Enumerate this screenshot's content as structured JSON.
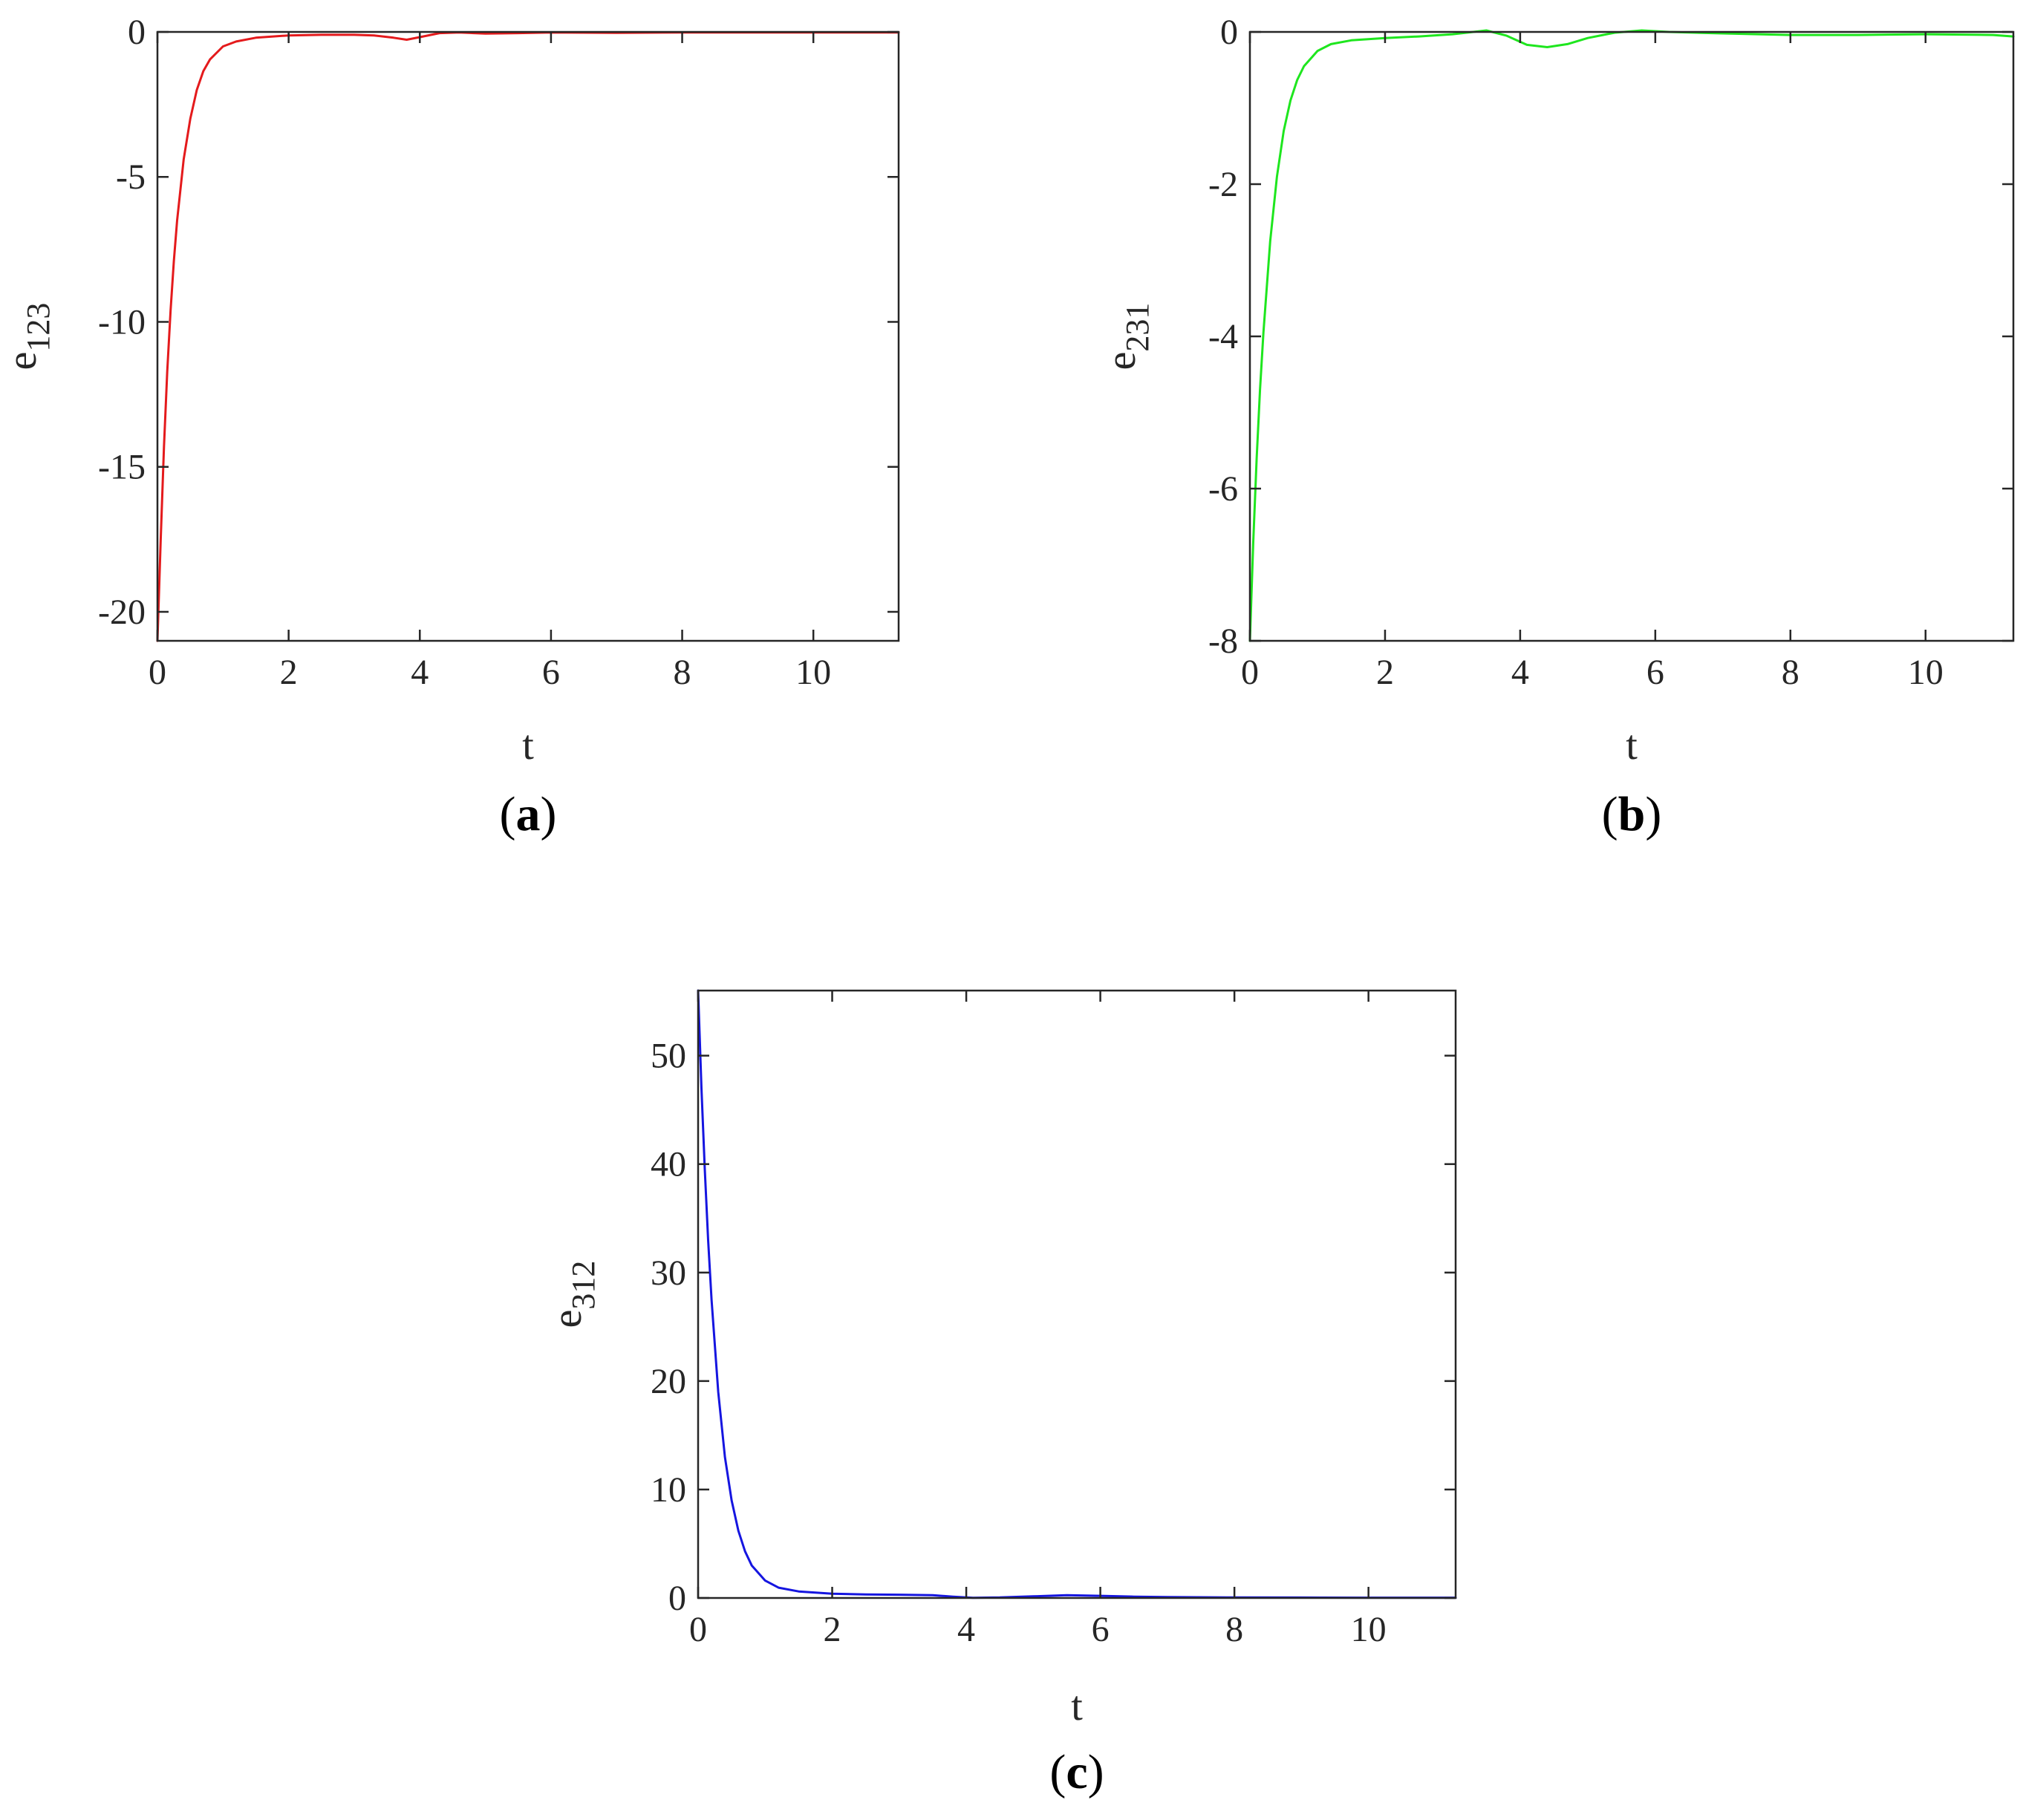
{
  "chart_data": [
    {
      "id": "a",
      "type": "line",
      "panel_label": {
        "open": "(",
        "letter": "a",
        "close": ")"
      },
      "xlabel": "t",
      "ylabel": {
        "base": "e",
        "sub": "123"
      },
      "xlim": [
        0,
        11.3
      ],
      "ylim": [
        -21,
        0
      ],
      "xticks": [
        0,
        2,
        4,
        6,
        8,
        10
      ],
      "yticks": [
        -20,
        -15,
        -10,
        -5,
        0
      ],
      "grid": false,
      "color": "#e41a1c",
      "series": [
        {
          "x": [
            0,
            0.05,
            0.1,
            0.15,
            0.2,
            0.25,
            0.3,
            0.4,
            0.5,
            0.6,
            0.7,
            0.8,
            1.0,
            1.2,
            1.5,
            2.0,
            2.5,
            3.0,
            3.3,
            3.6,
            3.8,
            4.0,
            4.3,
            4.6,
            5.0,
            5.5,
            6.0,
            7.0,
            8.0,
            9.0,
            10.0,
            11.3
          ],
          "y": [
            -21,
            -17.5,
            -14.3,
            -11.7,
            -9.6,
            -7.9,
            -6.5,
            -4.4,
            -3.0,
            -2.0,
            -1.35,
            -0.95,
            -0.5,
            -0.33,
            -0.2,
            -0.12,
            -0.1,
            -0.1,
            -0.12,
            -0.2,
            -0.27,
            -0.18,
            -0.04,
            -0.02,
            -0.06,
            -0.04,
            -0.02,
            -0.03,
            -0.02,
            -0.02,
            -0.02,
            -0.02
          ]
        }
      ]
    },
    {
      "id": "b",
      "type": "line",
      "panel_label": {
        "open": "(",
        "letter": "b",
        "close": ")"
      },
      "xlabel": "t",
      "ylabel": {
        "base": "e",
        "sub": "231"
      },
      "xlim": [
        0,
        11.3
      ],
      "ylim": [
        -8,
        0
      ],
      "xticks": [
        0,
        2,
        4,
        6,
        8,
        10
      ],
      "yticks": [
        -8,
        -6,
        -4,
        -2,
        0
      ],
      "grid": false,
      "color": "#1ee61e",
      "series": [
        {
          "x": [
            0,
            0.05,
            0.1,
            0.15,
            0.2,
            0.3,
            0.4,
            0.5,
            0.6,
            0.7,
            0.8,
            1.0,
            1.2,
            1.5,
            2.0,
            2.5,
            3.0,
            3.5,
            3.8,
            4.1,
            4.4,
            4.7,
            5.0,
            5.4,
            5.8,
            6.2,
            7.0,
            8.0,
            9.0,
            10.0,
            11.0,
            11.3
          ],
          "y": [
            -8,
            -6.7,
            -5.6,
            -4.7,
            -3.95,
            -2.75,
            -1.9,
            -1.3,
            -0.9,
            -0.63,
            -0.45,
            -0.25,
            -0.16,
            -0.11,
            -0.08,
            -0.06,
            -0.03,
            0.02,
            -0.05,
            -0.17,
            -0.2,
            -0.16,
            -0.08,
            -0.01,
            0.02,
            0.0,
            -0.02,
            -0.04,
            -0.04,
            -0.03,
            -0.04,
            -0.06
          ]
        }
      ]
    },
    {
      "id": "c",
      "type": "line",
      "panel_label": {
        "open": "(",
        "letter": "c",
        "close": ")"
      },
      "xlabel": "t",
      "ylabel": {
        "base": "e",
        "sub": "312"
      },
      "xlim": [
        0,
        11.3
      ],
      "ylim": [
        0,
        56
      ],
      "xticks": [
        0,
        2,
        4,
        6,
        8,
        10
      ],
      "yticks": [
        0,
        10,
        20,
        30,
        40,
        50
      ],
      "grid": false,
      "color": "#1515e0",
      "series": [
        {
          "x": [
            0,
            0.05,
            0.1,
            0.15,
            0.2,
            0.3,
            0.4,
            0.5,
            0.6,
            0.7,
            0.8,
            1.0,
            1.2,
            1.5,
            2.0,
            2.5,
            3.0,
            3.5,
            3.8,
            4.1,
            4.5,
            5.0,
            5.5,
            6.0,
            6.5,
            7.0,
            8.0,
            9.0,
            10.0,
            11.3
          ],
          "y": [
            56,
            47,
            39.5,
            33,
            27.5,
            19,
            13,
            9,
            6.2,
            4.3,
            3.0,
            1.6,
            0.95,
            0.6,
            0.4,
            0.32,
            0.3,
            0.25,
            0.12,
            0.02,
            0.05,
            0.15,
            0.25,
            0.2,
            0.12,
            0.08,
            0.05,
            0.04,
            0.03,
            0.03
          ]
        }
      ]
    }
  ]
}
